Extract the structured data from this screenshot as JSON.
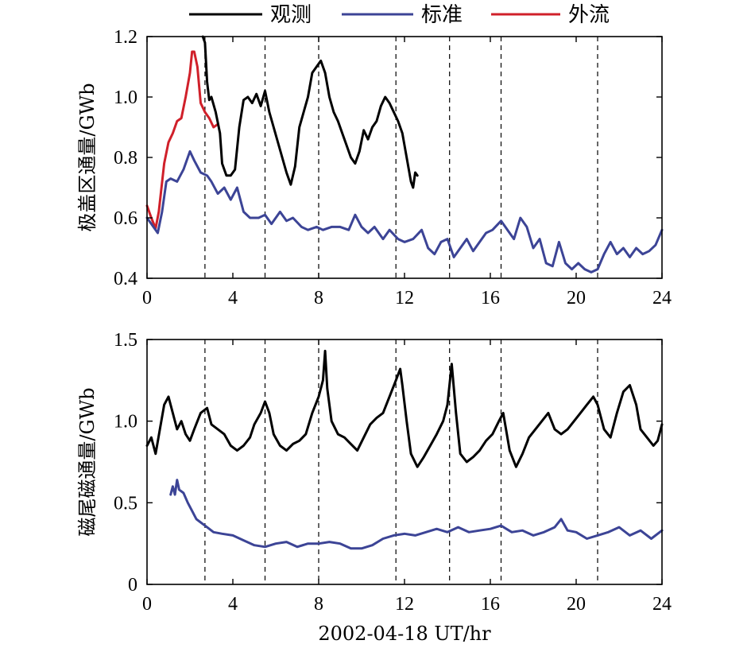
{
  "legend": [
    {
      "label": "观测",
      "color": "#000000"
    },
    {
      "label": "标准",
      "color": "#3c4496"
    },
    {
      "label": "外流",
      "color": "#d0202a"
    }
  ],
  "xlabel": "2002-04-18 UT/hr",
  "chart_data": [
    {
      "type": "line",
      "ylabel": "极盖区通量/GWb",
      "xlim": [
        0,
        24
      ],
      "ylim": [
        0.4,
        1.2
      ],
      "xticks": [
        "0",
        "4",
        "8",
        "12",
        "16",
        "20",
        "24"
      ],
      "yticks": [
        "0.4",
        "0.6",
        "0.8",
        "1.0",
        "1.2"
      ],
      "vlines": [
        2.7,
        5.5,
        8.0,
        11.6,
        14.1,
        16.5,
        21.0
      ],
      "series": [
        {
          "name": "外流",
          "color": "#d0202a",
          "x": [
            0,
            0.2,
            0.4,
            0.55,
            0.8,
            1.0,
            1.2,
            1.4,
            1.6,
            1.8,
            2.0,
            2.1,
            2.2,
            2.35,
            2.5,
            2.7,
            2.9,
            3.1,
            3.3
          ],
          "y": [
            0.64,
            0.6,
            0.565,
            0.62,
            0.78,
            0.85,
            0.88,
            0.92,
            0.93,
            1.0,
            1.08,
            1.15,
            1.15,
            1.1,
            0.98,
            0.95,
            0.93,
            0.9,
            0.91
          ]
        },
        {
          "name": "观测",
          "color": "#000000",
          "x": [
            2.6,
            2.7,
            2.8,
            2.9,
            3.0,
            3.2,
            3.4,
            3.5,
            3.7,
            3.9,
            4.1,
            4.3,
            4.5,
            4.7,
            4.9,
            5.1,
            5.3,
            5.5,
            5.7,
            5.9,
            6.1,
            6.3,
            6.5,
            6.7,
            6.9,
            7.1,
            7.3,
            7.5,
            7.7,
            7.9,
            8.1,
            8.3,
            8.5,
            8.7,
            8.9,
            9.1,
            9.3,
            9.5,
            9.7,
            9.9,
            10.1,
            10.3,
            10.5,
            10.7,
            10.9,
            11.1,
            11.3,
            11.5,
            11.7,
            11.9,
            12.1,
            12.3,
            12.4,
            12.5,
            12.6
          ],
          "y": [
            1.2,
            1.18,
            1.05,
            0.99,
            1.0,
            0.95,
            0.88,
            0.78,
            0.74,
            0.74,
            0.76,
            0.9,
            0.99,
            1.0,
            0.98,
            1.01,
            0.97,
            1.02,
            0.95,
            0.9,
            0.85,
            0.8,
            0.75,
            0.71,
            0.77,
            0.9,
            0.95,
            1.0,
            1.08,
            1.1,
            1.12,
            1.08,
            1.0,
            0.95,
            0.92,
            0.88,
            0.84,
            0.8,
            0.78,
            0.82,
            0.89,
            0.86,
            0.9,
            0.92,
            0.97,
            1.0,
            0.98,
            0.95,
            0.92,
            0.88,
            0.8,
            0.72,
            0.7,
            0.75,
            0.74
          ]
        },
        {
          "name": "标准",
          "color": "#3c4496",
          "x": [
            0,
            0.3,
            0.5,
            0.7,
            0.9,
            1.1,
            1.4,
            1.7,
            2.0,
            2.2,
            2.5,
            2.8,
            3.0,
            3.3,
            3.6,
            3.9,
            4.2,
            4.5,
            4.8,
            5.2,
            5.5,
            5.8,
            6.2,
            6.5,
            6.8,
            7.2,
            7.5,
            7.9,
            8.2,
            8.6,
            9.0,
            9.4,
            9.7,
            10.0,
            10.3,
            10.6,
            11.0,
            11.3,
            11.7,
            12.0,
            12.4,
            12.8,
            13.1,
            13.4,
            13.7,
            14.0,
            14.3,
            14.6,
            14.9,
            15.2,
            15.5,
            15.8,
            16.1,
            16.5,
            16.8,
            17.1,
            17.4,
            17.7,
            18.0,
            18.3,
            18.6,
            18.9,
            19.2,
            19.5,
            19.8,
            20.1,
            20.4,
            20.7,
            21.0,
            21.3,
            21.6,
            21.9,
            22.2,
            22.5,
            22.8,
            23.1,
            23.4,
            23.7,
            24.0
          ],
          "y": [
            0.6,
            0.57,
            0.55,
            0.62,
            0.72,
            0.73,
            0.72,
            0.76,
            0.82,
            0.79,
            0.75,
            0.74,
            0.72,
            0.68,
            0.7,
            0.66,
            0.7,
            0.62,
            0.6,
            0.6,
            0.61,
            0.58,
            0.62,
            0.59,
            0.6,
            0.57,
            0.56,
            0.57,
            0.56,
            0.57,
            0.57,
            0.56,
            0.61,
            0.57,
            0.55,
            0.57,
            0.53,
            0.56,
            0.53,
            0.52,
            0.53,
            0.56,
            0.5,
            0.48,
            0.52,
            0.53,
            0.47,
            0.5,
            0.53,
            0.49,
            0.52,
            0.55,
            0.56,
            0.59,
            0.56,
            0.53,
            0.6,
            0.57,
            0.5,
            0.53,
            0.45,
            0.44,
            0.52,
            0.45,
            0.43,
            0.45,
            0.43,
            0.42,
            0.43,
            0.48,
            0.52,
            0.48,
            0.5,
            0.47,
            0.5,
            0.48,
            0.49,
            0.51,
            0.56
          ]
        }
      ]
    },
    {
      "type": "line",
      "ylabel": "磁尾磁通量/GWb",
      "xlim": [
        0,
        24
      ],
      "ylim": [
        0,
        1.5
      ],
      "xticks": [
        "0",
        "4",
        "8",
        "12",
        "16",
        "20",
        "24"
      ],
      "yticks": [
        "0",
        "0.5",
        "1.0",
        "1.5"
      ],
      "vlines": [
        2.7,
        5.5,
        8.0,
        11.6,
        14.1,
        16.5,
        21.0
      ],
      "series": [
        {
          "name": "观测",
          "color": "#000000",
          "x": [
            0,
            0.2,
            0.4,
            0.6,
            0.8,
            1.0,
            1.2,
            1.4,
            1.6,
            1.8,
            2.0,
            2.2,
            2.5,
            2.8,
            3.0,
            3.3,
            3.6,
            3.9,
            4.2,
            4.5,
            4.8,
            5.0,
            5.3,
            5.5,
            5.7,
            5.9,
            6.2,
            6.5,
            6.8,
            7.1,
            7.4,
            7.7,
            8.0,
            8.2,
            8.3,
            8.4,
            8.6,
            8.9,
            9.2,
            9.5,
            9.8,
            10.1,
            10.4,
            10.7,
            11.0,
            11.3,
            11.6,
            11.8,
            11.9,
            12.1,
            12.3,
            12.6,
            12.9,
            13.2,
            13.5,
            13.8,
            14.0,
            14.2,
            14.4,
            14.6,
            14.9,
            15.2,
            15.5,
            15.8,
            16.1,
            16.4,
            16.6,
            16.9,
            17.2,
            17.5,
            17.8,
            18.1,
            18.4,
            18.7,
            19.0,
            19.3,
            19.6,
            19.9,
            20.2,
            20.5,
            20.8,
            21.0,
            21.3,
            21.6,
            21.9,
            22.2,
            22.5,
            22.8,
            23.0,
            23.3,
            23.6,
            23.8,
            24.0
          ],
          "y": [
            0.85,
            0.9,
            0.8,
            0.95,
            1.1,
            1.15,
            1.05,
            0.95,
            1.0,
            0.92,
            0.88,
            0.95,
            1.05,
            1.08,
            0.98,
            0.95,
            0.92,
            0.85,
            0.82,
            0.85,
            0.9,
            0.98,
            1.05,
            1.12,
            1.05,
            0.92,
            0.85,
            0.82,
            0.86,
            0.88,
            0.92,
            1.05,
            1.15,
            1.25,
            1.43,
            1.2,
            1.0,
            0.92,
            0.9,
            0.86,
            0.82,
            0.9,
            0.98,
            1.02,
            1.05,
            1.15,
            1.25,
            1.32,
            1.22,
            1.0,
            0.8,
            0.72,
            0.78,
            0.85,
            0.92,
            1.0,
            1.1,
            1.35,
            1.05,
            0.8,
            0.75,
            0.78,
            0.82,
            0.88,
            0.92,
            1.0,
            1.05,
            0.82,
            0.72,
            0.8,
            0.9,
            0.95,
            1.0,
            1.05,
            0.95,
            0.92,
            0.95,
            1.0,
            1.05,
            1.1,
            1.15,
            1.1,
            0.95,
            0.9,
            1.05,
            1.18,
            1.22,
            1.1,
            0.95,
            0.9,
            0.85,
            0.88,
            0.98
          ]
        },
        {
          "name": "标准",
          "color": "#3c4496",
          "x": [
            1.1,
            1.2,
            1.3,
            1.4,
            1.5,
            1.7,
            1.9,
            2.1,
            2.3,
            2.5,
            2.8,
            3.1,
            3.5,
            4.0,
            4.5,
            5.0,
            5.5,
            6.0,
            6.5,
            7.0,
            7.5,
            8.0,
            8.5,
            9.0,
            9.5,
            10.0,
            10.5,
            11.0,
            11.5,
            12.0,
            12.5,
            13.0,
            13.5,
            14.0,
            14.5,
            15.0,
            15.5,
            16.0,
            16.5,
            17.0,
            17.5,
            18.0,
            18.5,
            19.0,
            19.3,
            19.6,
            20.0,
            20.5,
            21.0,
            21.5,
            22.0,
            22.5,
            23.0,
            23.5,
            24.0
          ],
          "y": [
            0.55,
            0.6,
            0.55,
            0.64,
            0.58,
            0.56,
            0.5,
            0.45,
            0.4,
            0.38,
            0.35,
            0.32,
            0.31,
            0.3,
            0.27,
            0.24,
            0.23,
            0.25,
            0.26,
            0.23,
            0.25,
            0.25,
            0.26,
            0.25,
            0.22,
            0.22,
            0.24,
            0.28,
            0.3,
            0.31,
            0.3,
            0.32,
            0.34,
            0.32,
            0.35,
            0.32,
            0.33,
            0.34,
            0.36,
            0.32,
            0.33,
            0.3,
            0.32,
            0.35,
            0.4,
            0.33,
            0.32,
            0.28,
            0.3,
            0.32,
            0.35,
            0.3,
            0.33,
            0.28,
            0.33
          ]
        }
      ]
    }
  ]
}
